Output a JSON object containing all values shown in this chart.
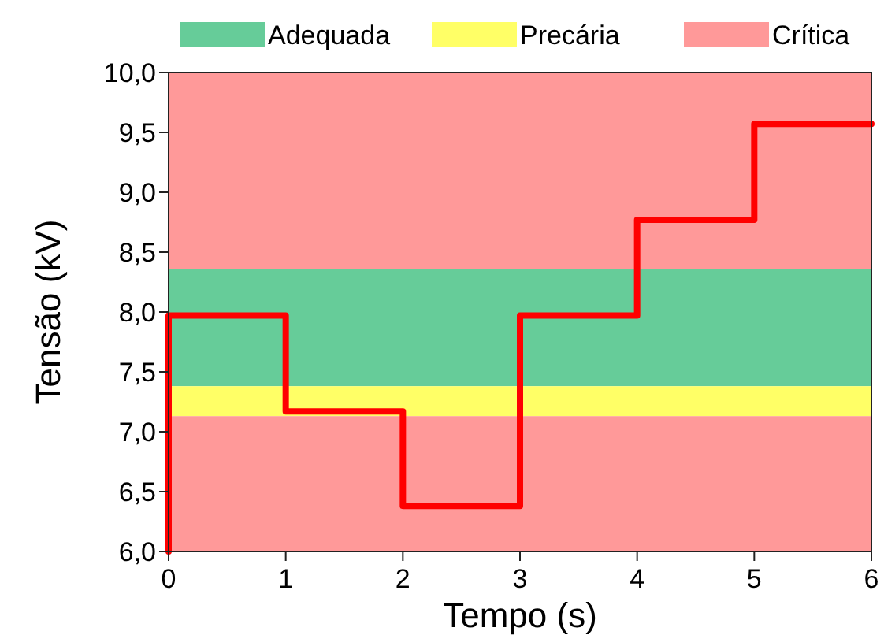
{
  "chart_data": {
    "type": "line",
    "xlabel": "Tempo (s)",
    "ylabel": "Tensão (kV)",
    "xlim": [
      0,
      6
    ],
    "xticks": [
      0,
      1,
      2,
      3,
      4,
      5,
      6
    ],
    "ylim": [
      6,
      10
    ],
    "yticks": [
      {
        "value": 6,
        "label": "6,0"
      },
      {
        "value": 6.5,
        "label": "6,5"
      },
      {
        "value": 7,
        "label": "7,0"
      },
      {
        "value": 7.5,
        "label": "7,5"
      },
      {
        "value": 8,
        "label": "8,0"
      },
      {
        "value": 8.5,
        "label": "8,5"
      },
      {
        "value": 9,
        "label": "9,0"
      },
      {
        "value": 9.5,
        "label": "9,5"
      },
      {
        "value": 10,
        "label": "10,0"
      }
    ],
    "bands": [
      {
        "axis": "y",
        "from": 7.38,
        "to": 8.36,
        "label": "Adequada",
        "color": "#66cc99"
      },
      {
        "axis": "y",
        "from": 7.13,
        "to": 7.38,
        "label": "Precária",
        "color": "#ffff66"
      },
      {
        "axis": "y",
        "from": 6,
        "to": 7.13,
        "label": "Crítica",
        "color": "#ff9999"
      },
      {
        "axis": "y",
        "from": 8.36,
        "to": 10,
        "label": null,
        "color": "#ff9999"
      }
    ],
    "series": [
      {
        "color": "#ff0000",
        "x": [
          0,
          0,
          1,
          1,
          2,
          2,
          3,
          3,
          4,
          4,
          5,
          5,
          6
        ],
        "values": [
          6,
          7.97,
          7.97,
          7.17,
          7.17,
          6.38,
          6.38,
          7.97,
          7.97,
          8.77,
          8.77,
          9.57,
          9.57
        ]
      }
    ],
    "legend": "top",
    "grid": false
  }
}
